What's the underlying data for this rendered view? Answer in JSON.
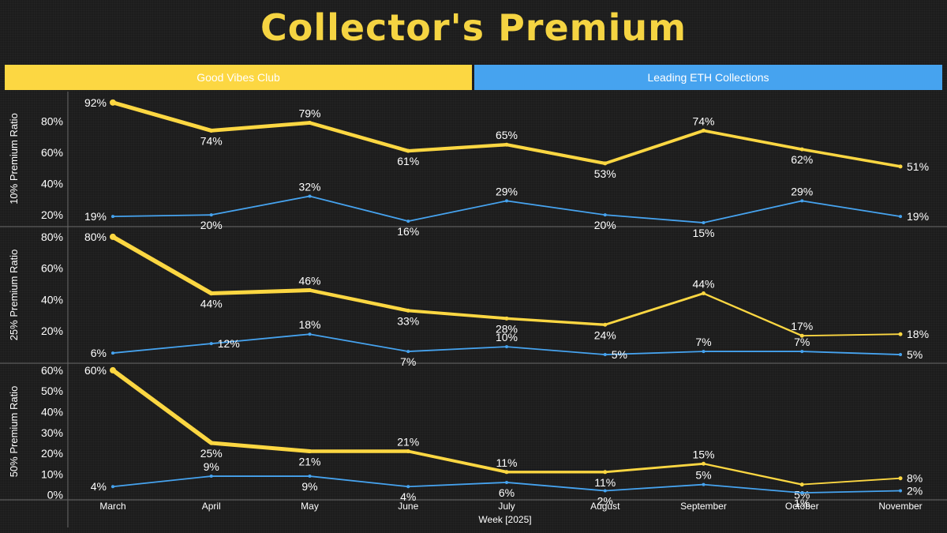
{
  "title": "Collector's Premium",
  "headers": {
    "gvc": "Good Vibes Club",
    "eth": "Leading ETH Collections"
  },
  "colors": {
    "gvc": "#fcd742",
    "eth": "#46a3ef",
    "text": "#ffffff",
    "grid": "#6a6a6a"
  },
  "chart_data": {
    "type": "line",
    "xlabel": "Week [2025]",
    "categories": [
      "March",
      "April",
      "May",
      "June",
      "July",
      "August",
      "September",
      "October",
      "November"
    ],
    "panels": [
      {
        "ylabel": "10% Premium Ratio",
        "yticks": [
          "20%",
          "40%",
          "60%",
          "80%"
        ],
        "ytick_values": [
          20,
          40,
          60,
          80
        ],
        "ylim": [
          13,
          99
        ],
        "series": [
          {
            "key": "gvc",
            "values": [
              92,
              74,
              79,
              61,
              65,
              53,
              74,
              62,
              51
            ],
            "labels": [
              "92%",
              "74%",
              "79%",
              "61%",
              "65%",
              "53%",
              "74%",
              "62%",
              "51%"
            ]
          },
          {
            "key": "eth",
            "values": [
              19,
              20,
              32,
              16,
              29,
              20,
              15,
              29,
              19
            ],
            "labels": [
              "19%",
              "20%",
              "32%",
              "16%",
              "29%",
              "20%",
              "15%",
              "29%",
              "19%"
            ]
          }
        ]
      },
      {
        "ylabel": "25% Premium Ratio",
        "yticks": [
          "20%",
          "40%",
          "60%",
          "80%"
        ],
        "ytick_values": [
          20,
          40,
          60,
          80
        ],
        "ylim": [
          0,
          86
        ],
        "series": [
          {
            "key": "gvc",
            "values": [
              80,
              44,
              46,
              33,
              28,
              24,
              44,
              17,
              18
            ],
            "labels": [
              "80%",
              "44%",
              "46%",
              "33%",
              "28%",
              "24%",
              "44%",
              "17%",
              "18%"
            ]
          },
          {
            "key": "eth",
            "values": [
              6,
              12,
              18,
              7,
              10,
              5,
              7,
              7,
              5
            ],
            "labels": [
              "6%",
              "12%",
              "18%",
              "7%",
              "10%",
              "5%",
              "7%",
              "7%",
              "5%"
            ]
          }
        ]
      },
      {
        "ylabel": "50% Premium Ratio",
        "yticks": [
          "0%",
          "10%",
          "20%",
          "30%",
          "40%",
          "50%",
          "60%"
        ],
        "ytick_values": [
          0,
          10,
          20,
          30,
          40,
          50,
          60
        ],
        "ylim": [
          -2,
          63
        ],
        "series": [
          {
            "key": "gvc",
            "values": [
              60,
              25,
              21,
              21,
              11,
              11,
              15,
              5,
              8
            ],
            "labels": [
              "60%",
              "25%",
              "21%",
              "21%",
              "11%",
              "11%",
              "15%",
              "5%",
              "8%"
            ]
          },
          {
            "key": "eth",
            "values": [
              4,
              9,
              9,
              4,
              6,
              2,
              5,
              1,
              2
            ],
            "labels": [
              "4%",
              "9%",
              "9%",
              "4%",
              "6%",
              "2%",
              "5%",
              "1%",
              "2%"
            ]
          }
        ]
      }
    ]
  }
}
